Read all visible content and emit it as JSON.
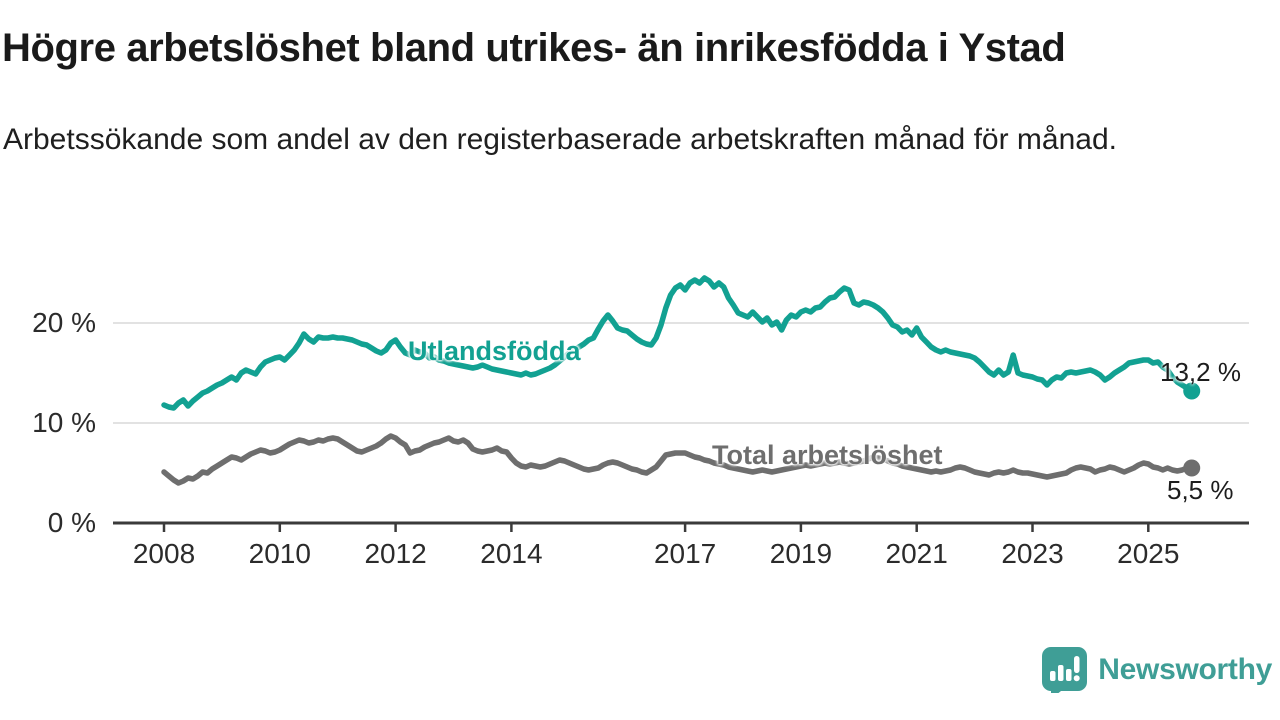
{
  "header": {
    "title": "Högre arbetslöshet bland utrikes- än inrikesfödda i Ystad",
    "subtitle": "Arbetssökande som andel av den registerbaserade arbetskraften månad för månad."
  },
  "footer": {
    "brand_name": "Newsworthy",
    "brand_icon": "speech-bubble-bar-chart"
  },
  "colors": {
    "foreign_line": "#12a192",
    "total_line": "#6e6e6e",
    "grid": "#d9d9d9",
    "axis": "#3a3a3a",
    "tick_text": "#2b2b2b",
    "title_text": "#1a1a1a",
    "brand_teal": "#3f9e96"
  },
  "chart_data": {
    "type": "line",
    "title": "Högre arbetslöshet bland utrikes- än inrikesfödda i Ystad",
    "subtitle": "Arbetssökande som andel av den registerbaserade arbetskraften månad för månad.",
    "unit": "%",
    "x_start_year": 2008,
    "x_start_month": 1,
    "months_per_point": 1,
    "x_tick_years": [
      2008,
      2010,
      2012,
      2014,
      2017,
      2019,
      2021,
      2023,
      2025
    ],
    "y_ticks": [
      {
        "value": 0,
        "label": "0 %"
      },
      {
        "value": 10,
        "label": "10 %"
      },
      {
        "value": 20,
        "label": "20 %"
      }
    ],
    "ylim": [
      0,
      26.5
    ],
    "grid": "horizontal-only",
    "legend_position": "inline-labels",
    "series": [
      {
        "name": "Utlandsfödda",
        "color": "#12a192",
        "end_label": "13,2 %",
        "end_value": 13.2,
        "values": [
          11.8,
          11.6,
          11.5,
          12.0,
          12.3,
          11.7,
          12.2,
          12.6,
          13.0,
          13.2,
          13.5,
          13.8,
          14.0,
          14.3,
          14.6,
          14.3,
          15.0,
          15.3,
          15.1,
          14.9,
          15.6,
          16.1,
          16.3,
          16.5,
          16.6,
          16.3,
          16.8,
          17.3,
          18.0,
          18.9,
          18.4,
          18.1,
          18.6,
          18.5,
          18.5,
          18.6,
          18.5,
          18.5,
          18.4,
          18.3,
          18.1,
          17.9,
          17.8,
          17.5,
          17.2,
          17.0,
          17.3,
          18.0,
          18.3,
          17.6,
          17.0,
          16.8,
          17.3,
          17.1,
          17.0,
          16.5,
          16.6,
          16.3,
          16.2,
          16.0,
          15.9,
          15.8,
          15.7,
          15.6,
          15.5,
          15.6,
          15.8,
          15.6,
          15.4,
          15.3,
          15.2,
          15.1,
          15.0,
          14.9,
          14.8,
          15.0,
          14.8,
          14.9,
          15.1,
          15.3,
          15.5,
          15.8,
          16.2,
          16.6,
          17.0,
          17.3,
          17.6,
          17.9,
          18.3,
          18.5,
          19.4,
          20.2,
          20.8,
          20.2,
          19.5,
          19.3,
          19.2,
          18.8,
          18.4,
          18.1,
          17.9,
          17.8,
          18.5,
          19.8,
          21.5,
          22.8,
          23.5,
          23.8,
          23.3,
          24.0,
          24.3,
          24.0,
          24.5,
          24.2,
          23.6,
          24.0,
          23.6,
          22.5,
          21.8,
          21.0,
          20.8,
          20.6,
          21.1,
          20.6,
          20.1,
          20.5,
          19.8,
          20.1,
          19.3,
          20.3,
          20.8,
          20.6,
          21.1,
          21.3,
          21.1,
          21.5,
          21.6,
          22.1,
          22.5,
          22.6,
          23.1,
          23.5,
          23.3,
          22.0,
          21.8,
          22.1,
          22.0,
          21.8,
          21.5,
          21.1,
          20.5,
          19.8,
          19.6,
          19.1,
          19.3,
          18.8,
          19.5,
          18.6,
          18.1,
          17.6,
          17.3,
          17.1,
          17.3,
          17.1,
          17.0,
          16.9,
          16.8,
          16.7,
          16.5,
          16.1,
          15.6,
          15.1,
          14.8,
          15.3,
          14.8,
          15.1,
          16.8,
          15.0,
          14.8,
          14.7,
          14.6,
          14.4,
          14.3,
          13.8,
          14.3,
          14.6,
          14.5,
          15.0,
          15.1,
          15.0,
          15.1,
          15.2,
          15.3,
          15.1,
          14.8,
          14.3,
          14.6,
          15.0,
          15.3,
          15.6,
          16.0,
          16.1,
          16.2,
          16.3,
          16.3,
          16.0,
          16.1,
          15.6,
          15.3,
          14.6,
          14.1,
          13.8,
          13.5,
          13.2
        ]
      },
      {
        "name": "Total arbetslöshet",
        "color": "#6e6e6e",
        "end_label": "5,5 %",
        "end_value": 5.5,
        "values": [
          5.1,
          4.7,
          4.3,
          4.0,
          4.2,
          4.5,
          4.4,
          4.7,
          5.1,
          5.0,
          5.4,
          5.7,
          6.0,
          6.3,
          6.6,
          6.5,
          6.3,
          6.6,
          6.9,
          7.1,
          7.3,
          7.2,
          7.0,
          7.1,
          7.3,
          7.6,
          7.9,
          8.1,
          8.3,
          8.2,
          8.0,
          8.1,
          8.3,
          8.2,
          8.4,
          8.5,
          8.4,
          8.1,
          7.8,
          7.5,
          7.2,
          7.1,
          7.3,
          7.5,
          7.7,
          8.0,
          8.4,
          8.7,
          8.5,
          8.1,
          7.8,
          7.0,
          7.2,
          7.3,
          7.6,
          7.8,
          8.0,
          8.1,
          8.3,
          8.5,
          8.2,
          8.1,
          8.3,
          8.0,
          7.4,
          7.2,
          7.1,
          7.2,
          7.3,
          7.5,
          7.2,
          7.1,
          6.5,
          6.0,
          5.7,
          5.6,
          5.8,
          5.7,
          5.6,
          5.7,
          5.9,
          6.1,
          6.3,
          6.2,
          6.0,
          5.8,
          5.6,
          5.4,
          5.3,
          5.4,
          5.5,
          5.8,
          6.0,
          6.1,
          6.0,
          5.8,
          5.6,
          5.4,
          5.3,
          5.1,
          5.0,
          5.3,
          5.6,
          6.2,
          6.8,
          6.9,
          7.0,
          7.0,
          7.0,
          6.8,
          6.6,
          6.5,
          6.3,
          6.2,
          6.0,
          5.9,
          5.8,
          5.6,
          5.5,
          5.4,
          5.3,
          5.2,
          5.1,
          5.2,
          5.3,
          5.2,
          5.1,
          5.2,
          5.3,
          5.4,
          5.5,
          5.6,
          5.7,
          5.8,
          5.7,
          5.8,
          5.9,
          6.0,
          5.9,
          6.0,
          6.1,
          6.0,
          5.9,
          6.0,
          6.1,
          6.2,
          6.4,
          6.6,
          6.5,
          6.4,
          6.2,
          6.0,
          5.9,
          5.7,
          5.6,
          5.5,
          5.4,
          5.3,
          5.2,
          5.1,
          5.2,
          5.1,
          5.2,
          5.3,
          5.5,
          5.6,
          5.5,
          5.3,
          5.1,
          5.0,
          4.9,
          4.8,
          5.0,
          5.1,
          5.0,
          5.1,
          5.3,
          5.1,
          5.0,
          5.0,
          4.9,
          4.8,
          4.7,
          4.6,
          4.7,
          4.8,
          4.9,
          5.0,
          5.3,
          5.5,
          5.6,
          5.5,
          5.4,
          5.1,
          5.3,
          5.4,
          5.6,
          5.5,
          5.3,
          5.1,
          5.3,
          5.5,
          5.8,
          6.0,
          5.9,
          5.6,
          5.5,
          5.3,
          5.5,
          5.3,
          5.2,
          5.3,
          5.5,
          5.5
        ]
      }
    ]
  }
}
